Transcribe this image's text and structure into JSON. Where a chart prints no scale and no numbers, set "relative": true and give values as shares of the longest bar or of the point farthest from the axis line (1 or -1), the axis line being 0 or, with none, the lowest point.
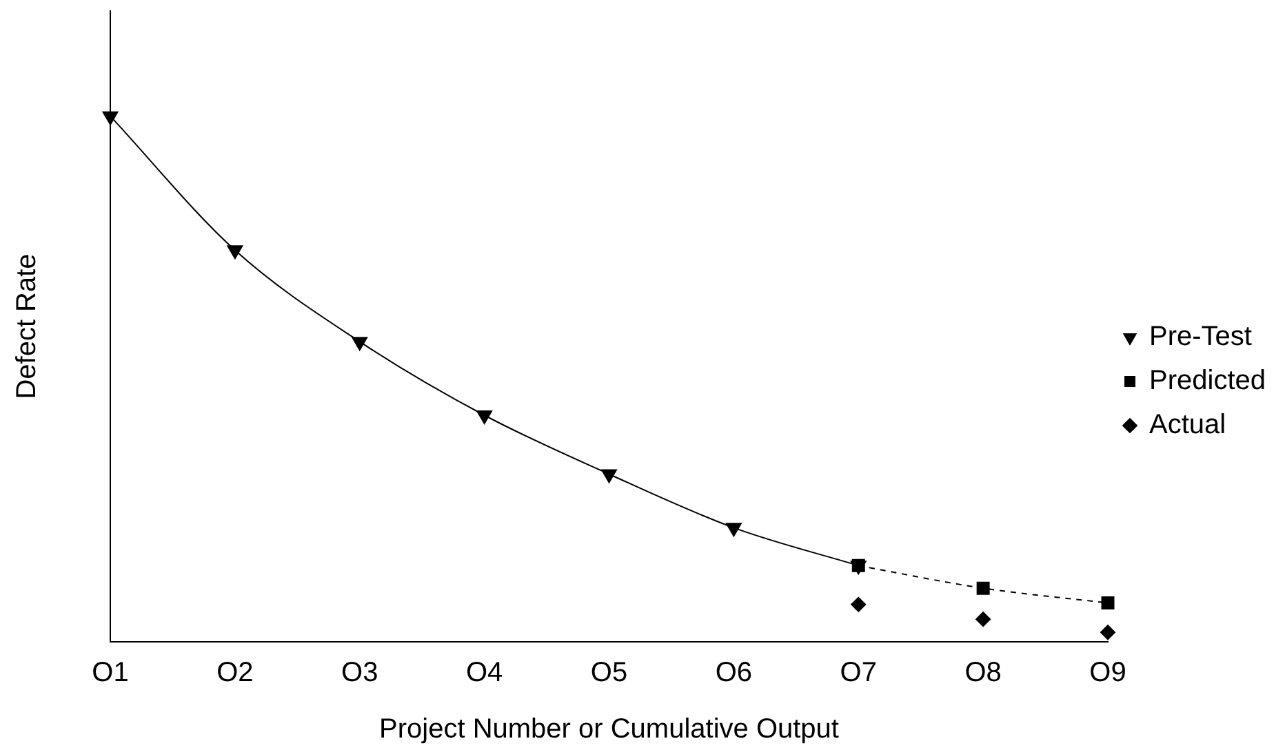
{
  "chart_data": {
    "type": "line",
    "relative": true,
    "xlabel": "Project Number or Cumulative Output",
    "ylabel": "Defect Rate",
    "categories": [
      "O1",
      "O2",
      "O3",
      "O4",
      "O5",
      "O6",
      "O7",
      "O8",
      "O9"
    ],
    "series": [
      {
        "name": "Pre-Test",
        "color": "#000000",
        "marker": "triangle",
        "line_style": "solid",
        "values": [
          1,
          0.745,
          0.571,
          0.431,
          0.319,
          0.217,
          0.145,
          null,
          null
        ]
      },
      {
        "name": "Predicted",
        "color": "#000000",
        "marker": "square",
        "line_style": "dashed",
        "values": [
          null,
          null,
          null,
          null,
          null,
          null,
          0.145,
          0.102,
          0.074
        ]
      },
      {
        "name": "Actual",
        "type": "scatter",
        "color": "#000000",
        "marker": "diamond",
        "values": [
          null,
          null,
          null,
          null,
          null,
          null,
          0.071,
          0.043,
          0.018
        ]
      }
    ],
    "legend": "right",
    "grid": false
  }
}
